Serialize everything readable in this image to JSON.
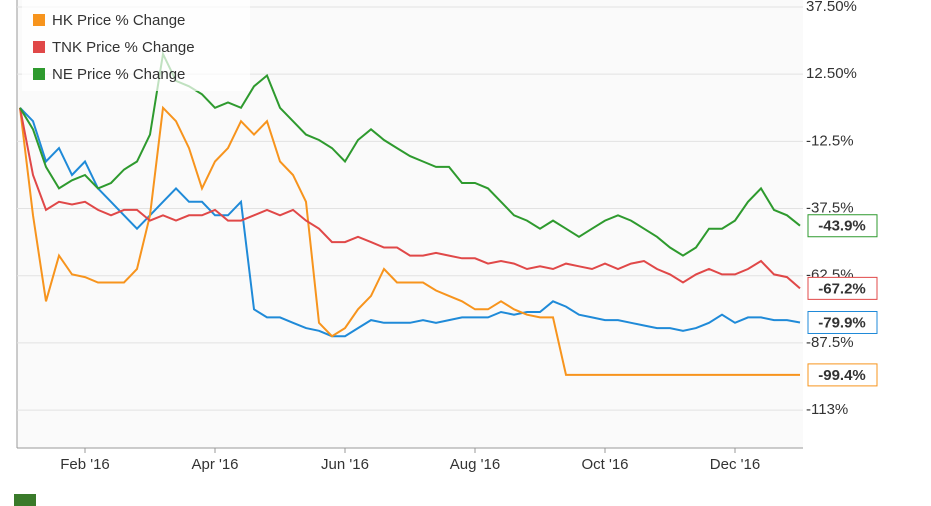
{
  "chart_data": {
    "type": "line",
    "categories": [
      null,
      null,
      null,
      null,
      null,
      "Feb '16",
      null,
      null,
      null,
      null,
      null,
      null,
      null,
      null,
      null,
      "Apr '16",
      null,
      null,
      null,
      null,
      null,
      null,
      null,
      null,
      null,
      "Jun '16",
      null,
      null,
      null,
      null,
      null,
      null,
      null,
      null,
      null,
      "Aug '16",
      null,
      null,
      null,
      null,
      null,
      null,
      null,
      null,
      null,
      "Oct '16",
      null,
      null,
      null,
      null,
      null,
      null,
      null,
      null,
      null,
      "Dec '16",
      null,
      null,
      null,
      null,
      null
    ],
    "series": [
      {
        "color": "#1f8ad8",
        "last_label": "-79.9%",
        "values": [
          0,
          -5,
          -20,
          -15,
          -25,
          -20,
          -30,
          -35,
          -40,
          -45,
          -40,
          -35,
          -30,
          -35,
          -35,
          -40,
          -40,
          -35,
          -75,
          -78,
          -78,
          -80,
          -82,
          -83,
          -85,
          -85,
          -82,
          -79,
          -80,
          -80,
          -80,
          -79,
          -80,
          -79,
          -78,
          -78,
          -78,
          -76,
          -77,
          -76,
          -76,
          -72,
          -74,
          -77,
          -78,
          -79,
          -79,
          -80,
          -81,
          -82,
          -82,
          -83,
          -82,
          -80,
          -77,
          -80,
          -78,
          -78,
          -79,
          -79,
          -79.9
        ]
      },
      {
        "name": "HK Price % Change",
        "color": "#f7941d",
        "last_label": "-99.4%",
        "values": [
          0,
          -40,
          -72,
          -55,
          -62,
          -63,
          -65,
          -65,
          -65,
          -60,
          -40,
          0,
          -5,
          -15,
          -30,
          -20,
          -15,
          -5,
          -10,
          -5,
          -20,
          -25,
          -35,
          -80,
          -85,
          -82,
          -75,
          -70,
          -60,
          -65,
          -65,
          -65,
          -68,
          -70,
          -72,
          -75,
          -75,
          -72,
          -75,
          -77,
          -78,
          -78,
          -99.4,
          -99.4,
          -99.4,
          -99.4,
          -99.4,
          -99.4,
          -99.4,
          -99.4,
          -99.4,
          -99.4,
          -99.4,
          -99.4,
          -99.4,
          -99.4,
          -99.4,
          -99.4,
          -99.4,
          -99.4,
          -99.4
        ]
      },
      {
        "name": "TNK Price % Change",
        "color": "#e04848",
        "last_label": "-67.2%",
        "values": [
          0,
          -25,
          -38,
          -35,
          -36,
          -35,
          -38,
          -40,
          -38,
          -38,
          -42,
          -40,
          -42,
          -40,
          -40,
          -38,
          -42,
          -42,
          -40,
          -38,
          -40,
          -38,
          -42,
          -45,
          -50,
          -50,
          -48,
          -50,
          -52,
          -52,
          -55,
          -55,
          -54,
          -55,
          -56,
          -56,
          -58,
          -57,
          -58,
          -60,
          -59,
          -60,
          -58,
          -59,
          -60,
          -58,
          -60,
          -58,
          -57,
          -60,
          -62,
          -65,
          -62,
          -60,
          -62,
          -62,
          -60,
          -57,
          -62,
          -63,
          -67.2
        ]
      },
      {
        "name": "NE Price % Change",
        "color": "#2e9a2e",
        "last_label": "-43.9%",
        "values": [
          0,
          -8,
          -22,
          -30,
          -27,
          -25,
          -30,
          -28,
          -23,
          -20,
          -10,
          20,
          10,
          8,
          5,
          0,
          2,
          0,
          8,
          12,
          0,
          -5,
          -10,
          -12,
          -15,
          -20,
          -12,
          -8,
          -12,
          -15,
          -18,
          -20,
          -22,
          -22,
          -28,
          -28,
          -30,
          -35,
          -40,
          -42,
          -45,
          -42,
          -45,
          -48,
          -45,
          -42,
          -40,
          -42,
          -45,
          -48,
          -52,
          -55,
          -52,
          -45,
          -45,
          -42,
          -35,
          -30,
          -38,
          -40,
          -43.9
        ]
      }
    ],
    "ylim": [
      -126.6,
      40.1
    ],
    "yticks": [
      {
        "value": 37.5,
        "label": "37.50%"
      },
      {
        "value": 12.5,
        "label": "12.50%"
      },
      {
        "value": -12.5,
        "label": "-12.5%"
      },
      {
        "value": -37.5,
        "label": "-37.5%"
      },
      {
        "value": -62.5,
        "label": "-62.5%"
      },
      {
        "value": -87.5,
        "label": "-87.5%"
      },
      {
        "value": -112.5,
        "label": "-113%"
      }
    ],
    "grid": true,
    "legend": "top-left"
  }
}
